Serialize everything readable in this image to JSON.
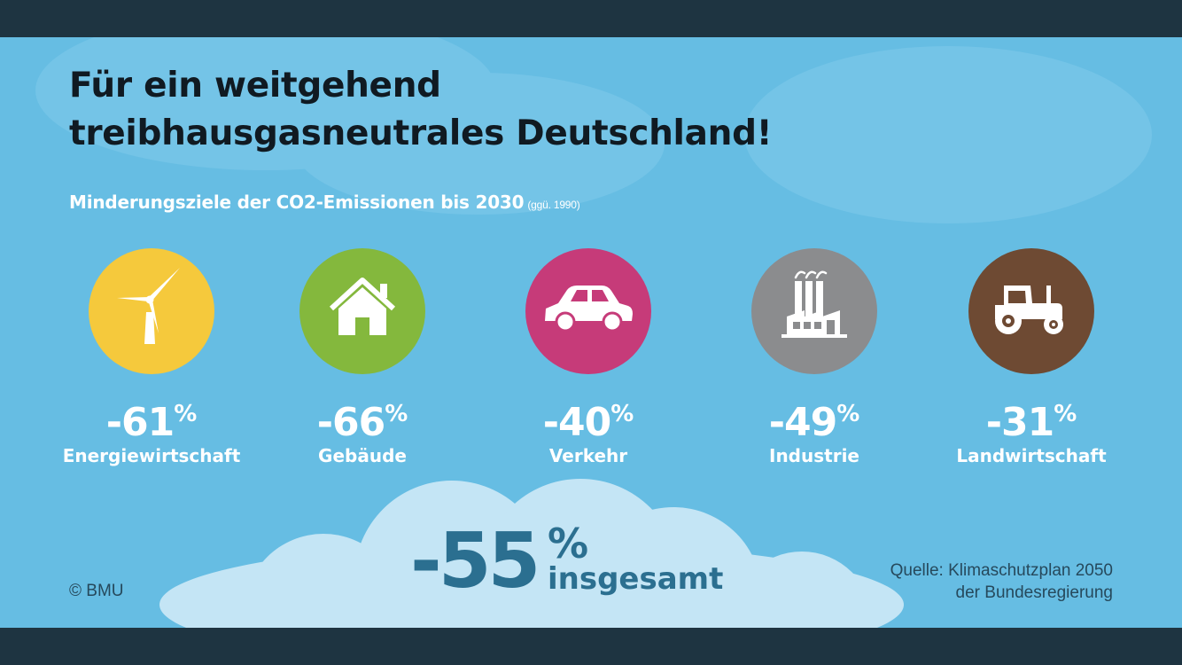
{
  "title_line1": "Für ein weitgehend",
  "title_line2": "treibhausgasneutrales Deutschland!",
  "subtitle": "Minderungsziele der CO2-Emissionen bis 2030",
  "subtitle_note": "(ggü. 1990)",
  "percent_sign": "%",
  "sectors": [
    {
      "value": "-61",
      "label": "Energiewirtschaft",
      "color": "#f5c93c",
      "icon": "wind-turbine-icon"
    },
    {
      "value": "-66",
      "label": "Gebäude",
      "color": "#84b83d",
      "icon": "house-icon"
    },
    {
      "value": "-40",
      "label": "Verkehr",
      "color": "#c63b79",
      "icon": "car-icon"
    },
    {
      "value": "-49",
      "label": "Industrie",
      "color": "#8b8c8e",
      "icon": "factory-icon"
    },
    {
      "value": "-31",
      "label": "Landwirtschaft",
      "color": "#6e4a33",
      "icon": "tractor-icon"
    }
  ],
  "total": {
    "value": "-55",
    "sign": "%",
    "label": "insgesamt"
  },
  "copyright": "© BMU",
  "source_line1": "Quelle: Klimaschutzplan 2050",
  "source_line2": "der Bundesregierung",
  "colors": {
    "background": "#66bde3",
    "frame": "#1e3441",
    "cloud": "#c4e5f5",
    "total_text": "#2b6f90"
  }
}
